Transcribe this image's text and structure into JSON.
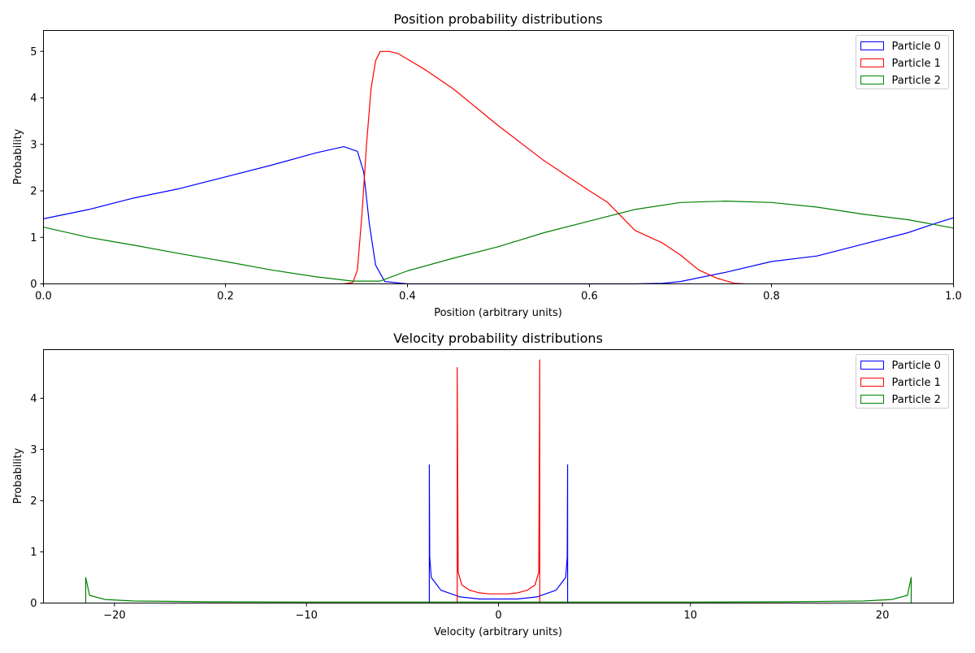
{
  "colors": {
    "particle0": "#0000ff",
    "particle1": "#ff0000",
    "particle2": "#008000"
  },
  "chart_data": [
    {
      "type": "line",
      "title": "Position probability distributions",
      "xlabel": "Position (arbitrary units)",
      "ylabel": "Probability",
      "xlim": [
        0.0,
        1.0
      ],
      "ylim": [
        0,
        5.45
      ],
      "xticks": [
        0.0,
        0.2,
        0.4,
        0.6,
        0.8,
        1.0
      ],
      "xtick_labels": [
        "0.0",
        "0.2",
        "0.4",
        "0.6",
        "0.8",
        "1.0"
      ],
      "yticks": [
        0,
        1,
        2,
        3,
        4,
        5
      ],
      "ytick_labels": [
        "0",
        "1",
        "2",
        "3",
        "4",
        "5"
      ],
      "legend": "top-right",
      "grid": false,
      "series": [
        {
          "name": "Particle 0",
          "color": "#0000ff",
          "x": [
            0.0,
            0.05,
            0.1,
            0.15,
            0.2,
            0.25,
            0.3,
            0.33,
            0.345,
            0.352,
            0.358,
            0.365,
            0.375,
            0.4,
            0.5,
            0.6,
            0.65,
            0.68,
            0.7,
            0.75,
            0.8,
            0.85,
            0.9,
            0.95,
            0.98,
            1.0
          ],
          "y": [
            1.4,
            1.6,
            1.85,
            2.05,
            2.3,
            2.55,
            2.82,
            2.95,
            2.85,
            2.4,
            1.3,
            0.4,
            0.05,
            0.0,
            0.0,
            0.0,
            0.0,
            0.01,
            0.05,
            0.25,
            0.48,
            0.6,
            0.85,
            1.1,
            1.3,
            1.42
          ]
        },
        {
          "name": "Particle 1",
          "color": "#ff0000",
          "x": [
            0.33,
            0.34,
            0.345,
            0.35,
            0.355,
            0.36,
            0.365,
            0.37,
            0.38,
            0.39,
            0.42,
            0.45,
            0.5,
            0.55,
            0.6,
            0.62,
            0.65,
            0.68,
            0.7,
            0.72,
            0.74,
            0.76,
            0.77
          ],
          "y": [
            0.0,
            0.03,
            0.3,
            1.5,
            3.0,
            4.2,
            4.8,
            5.0,
            5.0,
            4.95,
            4.6,
            4.2,
            3.4,
            2.65,
            2.0,
            1.75,
            1.15,
            0.88,
            0.62,
            0.3,
            0.12,
            0.01,
            0.0
          ]
        },
        {
          "name": "Particle 2",
          "color": "#008000",
          "x": [
            0.0,
            0.05,
            0.1,
            0.15,
            0.2,
            0.25,
            0.3,
            0.34,
            0.37,
            0.4,
            0.45,
            0.5,
            0.55,
            0.6,
            0.65,
            0.7,
            0.75,
            0.8,
            0.85,
            0.9,
            0.95,
            1.0
          ],
          "y": [
            1.22,
            1.0,
            0.83,
            0.65,
            0.48,
            0.3,
            0.15,
            0.06,
            0.06,
            0.28,
            0.55,
            0.8,
            1.1,
            1.35,
            1.6,
            1.75,
            1.78,
            1.75,
            1.65,
            1.5,
            1.38,
            1.2
          ]
        }
      ]
    },
    {
      "type": "line",
      "title": "Velocity probability distributions",
      "xlabel": "Velocity (arbitrary units)",
      "ylabel": "Probability",
      "xlim": [
        -23.7,
        23.7
      ],
      "ylim": [
        0,
        4.95
      ],
      "xticks": [
        -20,
        -10,
        0,
        10,
        20
      ],
      "xtick_labels": [
        "−20",
        "−10",
        "0",
        "10",
        "20"
      ],
      "yticks": [
        0,
        1,
        2,
        3,
        4
      ],
      "ytick_labels": [
        "0",
        "1",
        "2",
        "3",
        "4"
      ],
      "legend": "top-right",
      "grid": false,
      "series": [
        {
          "name": "Particle 0",
          "color": "#0000ff",
          "x": [
            -3.6,
            -3.6,
            -3.58,
            -3.5,
            -3.2,
            -3.0,
            -2.0,
            -1.0,
            0.0,
            1.0,
            2.0,
            3.0,
            3.2,
            3.5,
            3.58,
            3.6,
            3.6
          ],
          "y": [
            0.0,
            2.7,
            0.9,
            0.5,
            0.35,
            0.25,
            0.12,
            0.08,
            0.08,
            0.08,
            0.12,
            0.25,
            0.35,
            0.5,
            0.9,
            2.7,
            0.0
          ]
        },
        {
          "name": "Particle 1",
          "color": "#ff0000",
          "x": [
            -2.15,
            -2.15,
            -2.1,
            -1.9,
            -1.5,
            -1.0,
            -0.5,
            0.0,
            0.5,
            1.0,
            1.5,
            1.9,
            2.1,
            2.15,
            2.15
          ],
          "y": [
            0.0,
            4.6,
            0.6,
            0.35,
            0.25,
            0.2,
            0.18,
            0.18,
            0.18,
            0.2,
            0.25,
            0.35,
            0.6,
            4.75,
            0.0
          ]
        },
        {
          "name": "Particle 2",
          "color": "#008000",
          "x": [
            -21.5,
            -21.5,
            -21.3,
            -20.5,
            -19.0,
            -15.0,
            -10.0,
            -5.0,
            0.0,
            5.0,
            10.0,
            15.0,
            19.0,
            20.5,
            21.3,
            21.5,
            21.5
          ],
          "y": [
            0.0,
            0.5,
            0.15,
            0.07,
            0.04,
            0.025,
            0.02,
            0.02,
            0.02,
            0.02,
            0.02,
            0.025,
            0.04,
            0.07,
            0.15,
            0.5,
            0.0
          ]
        }
      ]
    }
  ]
}
